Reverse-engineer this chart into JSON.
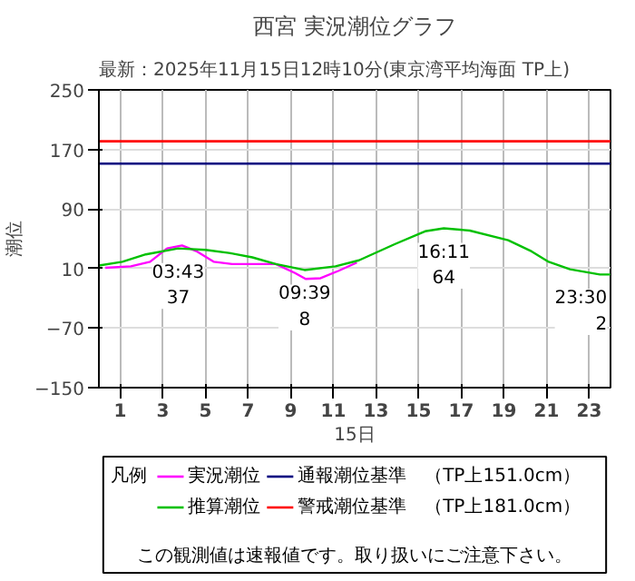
{
  "chart_data": {
    "type": "line",
    "title": "西宮 実況潮位グラフ",
    "subtitle": "最新：2025年11月15日12時10分(東京湾平均海面 TP上)",
    "xlabel": "15日",
    "ylabel": "潮位",
    "legend_title": "凡例",
    "xlim": [
      0,
      24
    ],
    "xticks": [
      1,
      3,
      5,
      7,
      9,
      11,
      13,
      15,
      17,
      19,
      21,
      23
    ],
    "ylim": [
      -150,
      250
    ],
    "yticks": [
      -150,
      -70,
      10,
      90,
      170,
      250
    ],
    "grid": true,
    "legend": "bottom",
    "series": [
      {
        "name": "実況潮位",
        "color": "#ff00ff",
        "x": [
          0.3,
          1.5,
          2.4,
          3.2,
          3.9,
          4.6,
          5.4,
          6.25,
          8.3,
          9.2,
          9.7,
          10.4,
          11.25,
          12.1
        ],
        "values": [
          11,
          13,
          19,
          37,
          41,
          33,
          19,
          16,
          16,
          4,
          -4,
          -3,
          7,
          18
        ]
      },
      {
        "name": "推算潮位",
        "color": "#00c000",
        "x": [
          0,
          1.1,
          2.2,
          3.72,
          5,
          6.1,
          7.2,
          8.3,
          9.65,
          11.1,
          12.2,
          13.9,
          15.3,
          16.18,
          17.4,
          19.2,
          20.3,
          21.1,
          22.1,
          23.5,
          24
        ],
        "values": [
          14,
          19,
          29,
          37,
          35,
          31,
          25,
          16,
          8,
          13,
          21,
          43,
          60,
          64,
          61,
          48,
          33,
          19,
          9,
          2,
          2
        ]
      }
    ],
    "ref_lines": [
      {
        "axis": "y",
        "value": 151,
        "label": "通報潮位基準　（TP上151.0cm）",
        "color": "#000080"
      },
      {
        "axis": "y",
        "value": 181,
        "label": "警戒潮位基準　（TP上181.0cm）",
        "color": "#ff0000"
      }
    ],
    "annotations": [
      {
        "text": "03:43\n37",
        "x": 3.72,
        "y": 37
      },
      {
        "text": "09:39\n8",
        "x": 9.65,
        "y": 8
      },
      {
        "text": "16:11\n64",
        "x": 16.18,
        "y": 64
      },
      {
        "text": "23:30\n2",
        "x": 23.5,
        "y": 2
      },
      "この観測値は速報値です。取り扱いにご注意下さい。"
    ]
  }
}
